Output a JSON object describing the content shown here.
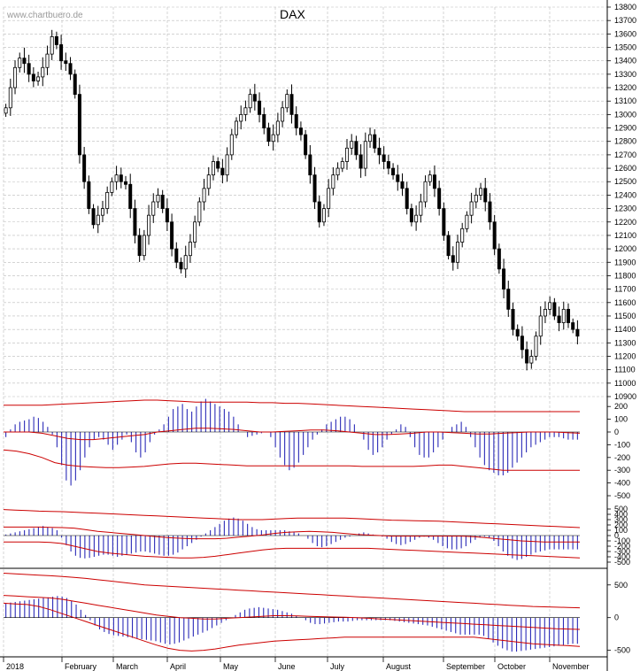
{
  "watermark": "www.chartbuero.de",
  "chart_data": {
    "type": "candlestick",
    "title": "DAX",
    "price_axis": {
      "min": 10900,
      "max": 13800,
      "step": 100,
      "tick_labels": [
        "13800",
        "13700",
        "13600",
        "13500",
        "13400",
        "13300",
        "13200",
        "13100",
        "13000",
        "12900",
        "12800",
        "12700",
        "12600",
        "12500",
        "12400",
        "12300",
        "12200",
        "12100",
        "12000",
        "11900",
        "11800",
        "11700",
        "11600",
        "11500",
        "11400",
        "11300",
        "11200",
        "11100",
        "11000",
        "10900"
      ]
    },
    "months": [
      "2018",
      "February",
      "March",
      "April",
      "May",
      "June",
      "July",
      "August",
      "September",
      "October",
      "November"
    ],
    "price_series": [
      13050,
      13200,
      13350,
      13420,
      13380,
      13300,
      13250,
      13280,
      13350,
      13450,
      13580,
      13520,
      13400,
      13380,
      13300,
      13150,
      12700,
      12500,
      12300,
      12180,
      12250,
      12300,
      12420,
      12500,
      12550,
      12500,
      12480,
      12300,
      12100,
      11950,
      12100,
      12250,
      12350,
      12400,
      12300,
      12200,
      12000,
      11900,
      11850,
      11950,
      12050,
      12200,
      12350,
      12450,
      12550,
      12650,
      12600,
      12550,
      12700,
      12850,
      12950,
      13000,
      13050,
      13150,
      13100,
      13000,
      12900,
      12800,
      12850,
      12950,
      13050,
      13150,
      13000,
      12900,
      12850,
      12700,
      12550,
      12350,
      12200,
      12300,
      12450,
      12550,
      12600,
      12650,
      12750,
      12800,
      12700,
      12600,
      12800,
      12850,
      12750,
      12700,
      12650,
      12600,
      12550,
      12500,
      12450,
      12300,
      12200,
      12250,
      12350,
      12500,
      12550,
      12450,
      12300,
      12100,
      11950,
      11900,
      12050,
      12150,
      12250,
      12350,
      12400,
      12450,
      12350,
      12200,
      12000,
      11850,
      11700,
      11550,
      11400,
      11350,
      11250,
      11150,
      11200,
      11350,
      11500,
      11550,
      11600,
      11500,
      11450,
      11550,
      11450,
      11400,
      11350
    ],
    "indicator_panels": [
      {
        "axis_labels": [
          "200",
          "100",
          "0",
          "-100",
          "-200",
          "-300",
          "-400",
          "-500"
        ],
        "range": [
          -500,
          250
        ],
        "band_upper": [
          210,
          210,
          210,
          210,
          215,
          220,
          225,
          230,
          235,
          240,
          245,
          250,
          250,
          245,
          240,
          235,
          235,
          235,
          235,
          235,
          230,
          230,
          225,
          225,
          220,
          215,
          210,
          205,
          200,
          195,
          190,
          185,
          180,
          175,
          170,
          165,
          160,
          160,
          160,
          160,
          160,
          160,
          160,
          160,
          160,
          160
        ],
        "band_mid": [
          0,
          0,
          0,
          -10,
          -30,
          -50,
          -60,
          -60,
          -50,
          -40,
          -30,
          -20,
          0,
          10,
          20,
          30,
          30,
          25,
          20,
          10,
          0,
          0,
          5,
          10,
          15,
          15,
          10,
          0,
          -10,
          -20,
          -20,
          -15,
          -10,
          0,
          0,
          -5,
          -10,
          -15,
          -15,
          -10,
          -5,
          0,
          0,
          0,
          -5,
          -10
        ],
        "band_lower": [
          -140,
          -150,
          -170,
          -200,
          -240,
          -260,
          -270,
          -275,
          -280,
          -280,
          -275,
          -270,
          -260,
          -250,
          -245,
          -245,
          -250,
          -255,
          -260,
          -265,
          -265,
          -265,
          -265,
          -265,
          -265,
          -265,
          -265,
          -265,
          -270,
          -270,
          -270,
          -270,
          -270,
          -265,
          -260,
          -260,
          -270,
          -280,
          -290,
          -300,
          -300,
          -300,
          -300,
          -300,
          -300,
          -300
        ],
        "histogram": [
          -40,
          20,
          60,
          80,
          90,
          100,
          120,
          110,
          80,
          40,
          -20,
          -120,
          -260,
          -380,
          -420,
          -380,
          -300,
          -200,
          -120,
          -60,
          -40,
          -60,
          -100,
          -140,
          -100,
          -60,
          -20,
          -80,
          -160,
          -200,
          -160,
          -80,
          -20,
          20,
          60,
          120,
          180,
          200,
          220,
          180,
          160,
          200,
          240,
          260,
          240,
          220,
          200,
          180,
          160,
          120,
          60,
          0,
          -40,
          -30,
          -20,
          -10,
          0,
          -40,
          -120,
          -200,
          -260,
          -300,
          -280,
          -240,
          -180,
          -120,
          -60,
          -20,
          20,
          60,
          80,
          100,
          120,
          120,
          100,
          60,
          0,
          -60,
          -140,
          -180,
          -160,
          -120,
          -60,
          -20,
          20,
          60,
          40,
          -40,
          -120,
          -180,
          -200,
          -200,
          -160,
          -120,
          -60,
          0,
          40,
          60,
          80,
          40,
          -40,
          -120,
          -200,
          -260,
          -300,
          -320,
          -340,
          -340,
          -320,
          -280,
          -240,
          -200,
          -160,
          -120,
          -100,
          -80,
          -60,
          -40,
          -40,
          -40,
          -50,
          -60,
          -60,
          -60
        ]
      },
      {
        "axis_labels": [
          "500",
          "400",
          "300",
          "200",
          "100",
          "0",
          "-100",
          "-200",
          "-300",
          "-400",
          "-500"
        ],
        "range": [
          -550,
          550
        ],
        "band_upper": [
          490,
          480,
          470,
          460,
          455,
          450,
          440,
          430,
          420,
          410,
          400,
          390,
          380,
          370,
          360,
          350,
          340,
          330,
          320,
          310,
          300,
          300,
          300,
          310,
          320,
          330,
          330,
          330,
          330,
          330,
          320,
          310,
          300,
          290,
          285,
          280,
          275,
          270,
          260,
          250,
          240,
          230,
          220,
          210,
          200,
          190,
          180,
          170,
          160,
          150
        ],
        "band_mid": [
          160,
          160,
          160,
          160,
          155,
          150,
          140,
          110,
          80,
          60,
          40,
          20,
          0,
          -20,
          -40,
          -50,
          -60,
          -60,
          -60,
          -50,
          -30,
          -10,
          10,
          40,
          60,
          70,
          80,
          70,
          60,
          40,
          20,
          10,
          0,
          -10,
          -10,
          -10,
          -10,
          -10,
          -10,
          -10,
          -20,
          -40,
          -60,
          -80,
          -100,
          -110,
          -120,
          -120,
          -120,
          -120
        ],
        "band_lower": [
          -120,
          -120,
          -120,
          -120,
          -130,
          -150,
          -200,
          -250,
          -300,
          -330,
          -350,
          -370,
          -390,
          -400,
          -410,
          -420,
          -420,
          -410,
          -390,
          -360,
          -330,
          -300,
          -270,
          -250,
          -240,
          -240,
          -240,
          -240,
          -240,
          -240,
          -240,
          -240,
          -250,
          -260,
          -270,
          -280,
          -290,
          -300,
          -310,
          -320,
          -330,
          -340,
          -350,
          -360,
          -370,
          -380,
          -390,
          -400,
          -410,
          -420
        ],
        "histogram": [
          20,
          40,
          60,
          80,
          100,
          120,
          140,
          160,
          180,
          160,
          140,
          100,
          -40,
          -180,
          -300,
          -380,
          -420,
          -430,
          -420,
          -400,
          -380,
          -360,
          -360,
          -380,
          -400,
          -380,
          -360,
          -340,
          -320,
          -300,
          -300,
          -320,
          -340,
          -360,
          -380,
          -380,
          -360,
          -320,
          -260,
          -200,
          -140,
          -80,
          -20,
          40,
          100,
          160,
          220,
          280,
          320,
          340,
          320,
          280,
          220,
          160,
          120,
          100,
          100,
          100,
          100,
          100,
          100,
          80,
          60,
          40,
          0,
          -60,
          -140,
          -200,
          -220,
          -200,
          -160,
          -120,
          -80,
          -40,
          -20,
          0,
          40,
          60,
          40,
          20,
          0,
          -20,
          -60,
          -120,
          -160,
          -180,
          -160,
          -120,
          -80,
          -40,
          -20,
          -40,
          -80,
          -140,
          -200,
          -240,
          -260,
          -260,
          -240,
          -200,
          -140,
          -80,
          -40,
          -20,
          -40,
          -100,
          -200,
          -300,
          -380,
          -430,
          -460,
          -440,
          -400,
          -360,
          -320,
          -300,
          -280,
          -260,
          -260,
          -260,
          -260,
          -260,
          -260,
          -260
        ]
      },
      {
        "axis_labels": [
          "500",
          "0",
          "-500"
        ],
        "range": [
          -600,
          700
        ],
        "band_upper": [
          680,
          670,
          660,
          650,
          640,
          630,
          615,
          600,
          580,
          560,
          540,
          520,
          500,
          490,
          480,
          470,
          460,
          450,
          440,
          430,
          420,
          410,
          400,
          390,
          380,
          370,
          360,
          350,
          340,
          330,
          320,
          310,
          300,
          290,
          280,
          270,
          260,
          250,
          240,
          230,
          220,
          210,
          200,
          190,
          180,
          170,
          165,
          160,
          155,
          150
        ],
        "band_mid": [
          340,
          330,
          320,
          310,
          300,
          280,
          250,
          220,
          190,
          160,
          130,
          100,
          70,
          40,
          20,
          0,
          -10,
          -20,
          -20,
          -10,
          0,
          10,
          20,
          30,
          30,
          25,
          20,
          15,
          10,
          5,
          0,
          -10,
          -20,
          -30,
          -40,
          -50,
          -60,
          -70,
          -80,
          -90,
          -100,
          -110,
          -120,
          -130,
          -140,
          -150,
          -160,
          -170,
          -175,
          -180
        ],
        "band_lower": [
          220,
          210,
          200,
          170,
          120,
          60,
          0,
          -60,
          -120,
          -180,
          -240,
          -300,
          -360,
          -420,
          -470,
          -500,
          -510,
          -500,
          -480,
          -450,
          -420,
          -400,
          -380,
          -360,
          -350,
          -340,
          -330,
          -320,
          -310,
          -300,
          -300,
          -300,
          -300,
          -300,
          -300,
          -300,
          -300,
          -300,
          -300,
          -300,
          -300,
          -320,
          -340,
          -360,
          -380,
          -400,
          -410,
          -420,
          -430,
          -440
        ],
        "histogram": [
          220,
          230,
          240,
          250,
          260,
          270,
          280,
          290,
          300,
          310,
          320,
          330,
          320,
          300,
          260,
          200,
          120,
          40,
          -40,
          -120,
          -180,
          -220,
          -250,
          -270,
          -280,
          -290,
          -300,
          -310,
          -320,
          -330,
          -340,
          -350,
          -360,
          -380,
          -400,
          -410,
          -400,
          -380,
          -350,
          -320,
          -290,
          -260,
          -230,
          -200,
          -160,
          -120,
          -80,
          -40,
          0,
          40,
          80,
          120,
          140,
          150,
          160,
          150,
          140,
          130,
          120,
          100,
          80,
          60,
          30,
          0,
          -40,
          -80,
          -100,
          -100,
          -90,
          -80,
          -70,
          -60,
          -60,
          -60,
          -50,
          -40,
          -40,
          -40,
          -40,
          -40,
          -40,
          -40,
          -40,
          -50,
          -60,
          -70,
          -80,
          -90,
          -100,
          -110,
          -120,
          -140,
          -160,
          -180,
          -200,
          -220,
          -240,
          -260,
          -260,
          -260,
          -260,
          -260,
          -280,
          -320,
          -380,
          -430,
          -470,
          -500,
          -520,
          -520,
          -510,
          -500,
          -490,
          -480,
          -470,
          -460,
          -450,
          -440,
          -430,
          -420,
          -410,
          -400,
          -400
        ]
      }
    ]
  }
}
